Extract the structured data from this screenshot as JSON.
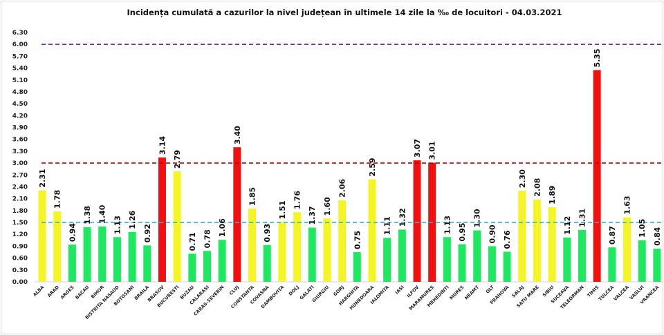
{
  "chart_data": {
    "type": "bar",
    "title": "Incidența cumulată a cazurilor la nivel județean în ultimele 14 zile la ‰ de locuitori - 04.03.2021",
    "xlabel": "",
    "ylabel": "",
    "ylim": [
      0,
      6.3
    ],
    "yticks": [
      "0.00",
      "0.30",
      "0.60",
      "0.90",
      "1.20",
      "1.50",
      "1.80",
      "2.10",
      "2.40",
      "2.70",
      "3.00",
      "3.30",
      "3.60",
      "3.90",
      "4.20",
      "4.50",
      "4.80",
      "5.10",
      "5.40",
      "5.70",
      "6.00",
      "6.30"
    ],
    "grid": false,
    "legend": "none",
    "categories": [
      "ALBA",
      "ARAD",
      "ARGES",
      "BACAU",
      "BIHOR",
      "BISTRITA NASAUD",
      "BOTOSANI",
      "BRAILA",
      "BRASOV",
      "BUCURESTI",
      "BUZAU",
      "CALARASI",
      "CARAS-SEVERIN",
      "CLUJ",
      "CONSTANTA",
      "COVASNA",
      "DAMBOVITA",
      "DOLJ",
      "GALATI",
      "GIURGIU",
      "GORJ",
      "HARGHITA",
      "HUNEDOARA",
      "IALOMITA",
      "IASI",
      "ILFOV",
      "MARAMURES",
      "MEHEDINTI",
      "MURES",
      "NEAMT",
      "OLT",
      "PRAHOVA",
      "SALAJ",
      "SATU MARE",
      "SIBIU",
      "SUCEAVA",
      "TELEORMAN",
      "TIMIS",
      "TULCEA",
      "VALCEA",
      "VASLUI",
      "VRANCEA"
    ],
    "values": [
      2.31,
      1.78,
      0.94,
      1.38,
      1.4,
      1.13,
      1.26,
      0.92,
      3.14,
      2.79,
      0.71,
      0.78,
      1.06,
      3.4,
      1.85,
      0.93,
      1.51,
      1.76,
      1.37,
      1.6,
      2.06,
      0.75,
      2.59,
      1.11,
      1.32,
      3.07,
      3.01,
      1.13,
      0.95,
      1.3,
      0.9,
      0.76,
      2.3,
      2.08,
      1.89,
      1.12,
      1.31,
      5.35,
      0.87,
      1.63,
      1.05,
      0.84
    ],
    "data_labels": [
      "2.31",
      "1.78",
      "0.94",
      "1.38",
      "1.40",
      "1.13",
      "1.26",
      "0.92",
      "3.14",
      "2.79",
      "0.71",
      "0.78",
      "1.06",
      "3.40",
      "1.85",
      "0.93",
      "1.51",
      "1.76",
      "1.37",
      "1.60",
      "2.06",
      "0.75",
      "2.59",
      "1.11",
      "1.32",
      "3.07",
      "3.01",
      "1.13",
      "0.95",
      "1.30",
      "0.90",
      "0.76",
      "2.30",
      "2.08",
      "1.89",
      "1.12",
      "1.31",
      "5.35",
      "0.87",
      "1.63",
      "1.05",
      "0.84"
    ],
    "color_thresholds": [
      {
        "below": 1.5,
        "color": "#1ee860"
      },
      {
        "below": 3.0,
        "color": "#f5f526"
      },
      {
        "below": 99,
        "color": "#f01010"
      }
    ],
    "reference_lines": [
      {
        "value": 6.0,
        "color": "#7030a0",
        "style": "dashed"
      },
      {
        "value": 3.0,
        "color": "#c00000",
        "style": "dashed"
      },
      {
        "value": 1.5,
        "color": "#31b6d6",
        "style": "dashed"
      }
    ]
  }
}
